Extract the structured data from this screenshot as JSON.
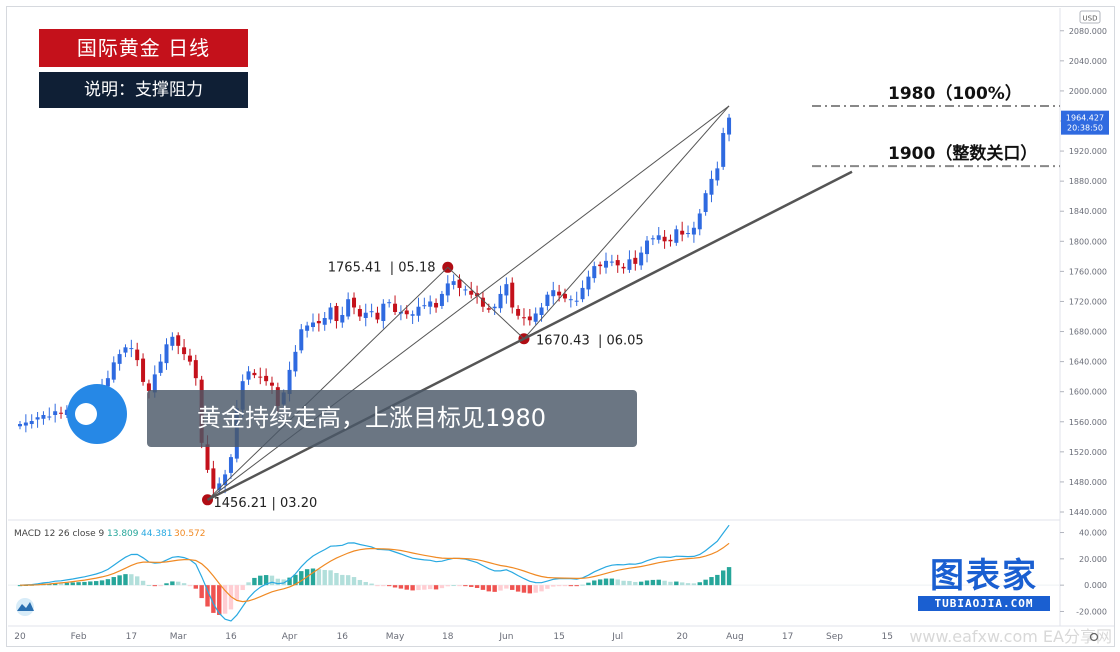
{
  "title_box": "国际黄金  日线",
  "subtitle_box": "说明：支撑阻力",
  "banner": "黄金持续走高，上涨目标见1980",
  "brand": {
    "name": "图表家",
    "url": "TUBIAOJIA.COM"
  },
  "watermark": "www.eafxw.com  EA分享网",
  "currency": "USD",
  "price_badge": {
    "value": "1964.427",
    "countdown": "20:38:50"
  },
  "levels": [
    {
      "value": 1980,
      "label": "1980（100%）"
    },
    {
      "value": 1900,
      "label": "1900（整数关口）"
    }
  ],
  "pivots": [
    {
      "date_index": 32,
      "price": 1456.21,
      "price_label": "1456.21",
      "date_label": "03.20"
    },
    {
      "date_index": 73,
      "price": 1765.41,
      "price_label": "1765.41",
      "date_label": "05.18"
    },
    {
      "date_index": 86,
      "price": 1670.43,
      "price_label": "1670.43",
      "date_label": "06.05"
    }
  ],
  "macd": {
    "label": "MACD 12 26 close 9",
    "histogram": "13.809",
    "macd": "44.381",
    "signal": "30.572",
    "yticks": [
      "40.000",
      "20.000",
      "0.000",
      "-20.000"
    ]
  },
  "colors": {
    "up": "#2f6ae0",
    "down": "#c4111b",
    "macd_line": "#29a9e1",
    "signal_line": "#f08a24",
    "hist_pos_strong": "#26a69a",
    "hist_pos_weak": "#b2dfdb",
    "hist_neg_strong": "#ef5350",
    "hist_neg_weak": "#ffcdd2"
  },
  "chart_data": {
    "type": "candlestick",
    "ylim": [
      1440,
      2085
    ],
    "yticks": [
      "2080.000",
      "2040.000",
      "2000.000",
      "1960.000",
      "1920.000",
      "1880.000",
      "1840.000",
      "1800.000",
      "1760.000",
      "1720.000",
      "1680.000",
      "1640.000",
      "1600.000",
      "1560.000",
      "1520.000",
      "1480.000",
      "1440.000"
    ],
    "xticks": [
      {
        "label": "20",
        "index": 0
      },
      {
        "label": "Feb",
        "index": 10
      },
      {
        "label": "17",
        "index": 19
      },
      {
        "label": "Mar",
        "index": 27
      },
      {
        "label": "16",
        "index": 36
      },
      {
        "label": "Apr",
        "index": 46
      },
      {
        "label": "16",
        "index": 55
      },
      {
        "label": "May",
        "index": 64
      },
      {
        "label": "18",
        "index": 73
      },
      {
        "label": "Jun",
        "index": 83
      },
      {
        "label": "15",
        "index": 92
      },
      {
        "label": "Jul",
        "index": 102
      },
      {
        "label": "20",
        "index": 113
      },
      {
        "label": "Aug",
        "index": 122
      },
      {
        "label": "17",
        "index": 131
      },
      {
        "label": "Sep",
        "index": 139
      },
      {
        "label": "15",
        "index": 148
      }
    ],
    "closes": [
      1557,
      1559,
      1561,
      1566,
      1569,
      1567,
      1574,
      1571,
      1576,
      1579,
      1583,
      1586,
      1592,
      1596,
      1605,
      1618,
      1639,
      1650,
      1659,
      1658,
      1642,
      1613,
      1601,
      1623,
      1640,
      1663,
      1673,
      1661,
      1650,
      1640,
      1618,
      1532,
      1496,
      1471,
      1478,
      1490,
      1513,
      1578,
      1614,
      1627,
      1622,
      1619,
      1614,
      1608,
      1581,
      1599,
      1629,
      1653,
      1683,
      1688,
      1692,
      1691,
      1698,
      1712,
      1694,
      1702,
      1723,
      1712,
      1700,
      1705,
      1707,
      1696,
      1717,
      1719,
      1706,
      1706,
      1703,
      1703,
      1713,
      1715,
      1720,
      1712,
      1730,
      1744,
      1747,
      1738,
      1736,
      1729,
      1727,
      1713,
      1709,
      1713,
      1730,
      1743,
      1712,
      1701,
      1698,
      1695,
      1704,
      1712,
      1729,
      1735,
      1728,
      1724,
      1723,
      1721,
      1738,
      1753,
      1767,
      1767,
      1774,
      1773,
      1768,
      1764,
      1776,
      1770,
      1785,
      1801,
      1804,
      1808,
      1800,
      1800,
      1816,
      1809,
      1811,
      1818,
      1837,
      1864,
      1883,
      1897,
      1944,
      1964.43
    ]
  }
}
